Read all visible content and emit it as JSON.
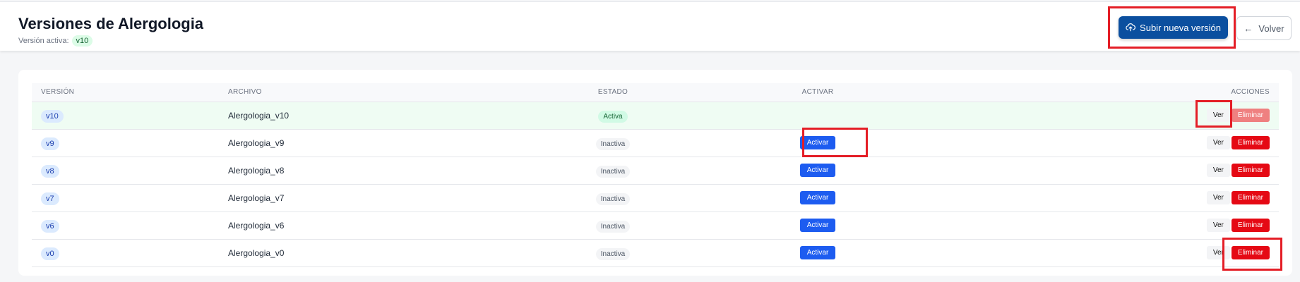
{
  "header": {
    "title": "Versiones de Alergologia",
    "active_label": "Versión activa:",
    "active_version": "v10",
    "upload_label": "Subir nueva versión",
    "upload_icon": "cloud-upload-icon",
    "back_label": "Volver",
    "back_icon": "arrow-left-icon"
  },
  "table": {
    "columns": [
      "VERSIÓN",
      "ARCHIVO",
      "ESTADO",
      "ACTIVAR",
      "ACCIONES"
    ],
    "rows": [
      {
        "version": "v10",
        "file": "Alergologia_v10",
        "status": "Activa",
        "activate": "",
        "view": "Ver",
        "delete": "Eliminar"
      },
      {
        "version": "v9",
        "file": "Alergologia_v9",
        "status": "Inactiva",
        "activate": "Activar",
        "view": "Ver",
        "delete": "Eliminar"
      },
      {
        "version": "v8",
        "file": "Alergologia_v8",
        "status": "Inactiva",
        "activate": "Activar",
        "view": "Ver",
        "delete": "Eliminar"
      },
      {
        "version": "v7",
        "file": "Alergologia_v7",
        "status": "Inactiva",
        "activate": "Activar",
        "view": "Ver",
        "delete": "Eliminar"
      },
      {
        "version": "v6",
        "file": "Alergologia_v6",
        "status": "Inactiva",
        "activate": "Activar",
        "view": "Ver",
        "delete": "Eliminar"
      },
      {
        "version": "v0",
        "file": "Alergologia_v0",
        "status": "Inactiva",
        "activate": "Activar",
        "view": "Ver",
        "delete": "Eliminar"
      }
    ]
  },
  "colors": {
    "primary": "#0b4f9f",
    "activate": "#1d5cf0",
    "delete": "#e50914",
    "annotation": "#e41e26"
  }
}
